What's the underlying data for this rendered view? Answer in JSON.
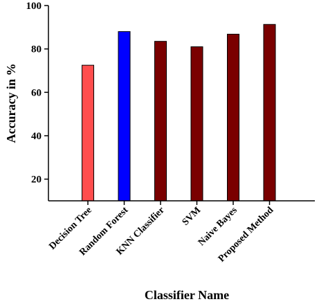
{
  "chart_data": {
    "type": "bar",
    "categories": [
      "Decision Tree",
      "Random Forest",
      "KNN Classifier",
      "SVM",
      "Naive Bayes",
      "Proposed Method"
    ],
    "values": [
      72.5,
      88,
      83.5,
      81,
      86.8,
      91.3
    ],
    "colors": [
      "#ff4d4d",
      "#0000ff",
      "#7a0000",
      "#7a0000",
      "#7a0000",
      "#7a0000"
    ],
    "xlabel": "Classifier Name",
    "ylabel": "Accuracy in %",
    "ylim": [
      10,
      100
    ],
    "yticks": [
      20,
      40,
      60,
      80,
      100
    ],
    "grid": false,
    "legend": "none"
  }
}
